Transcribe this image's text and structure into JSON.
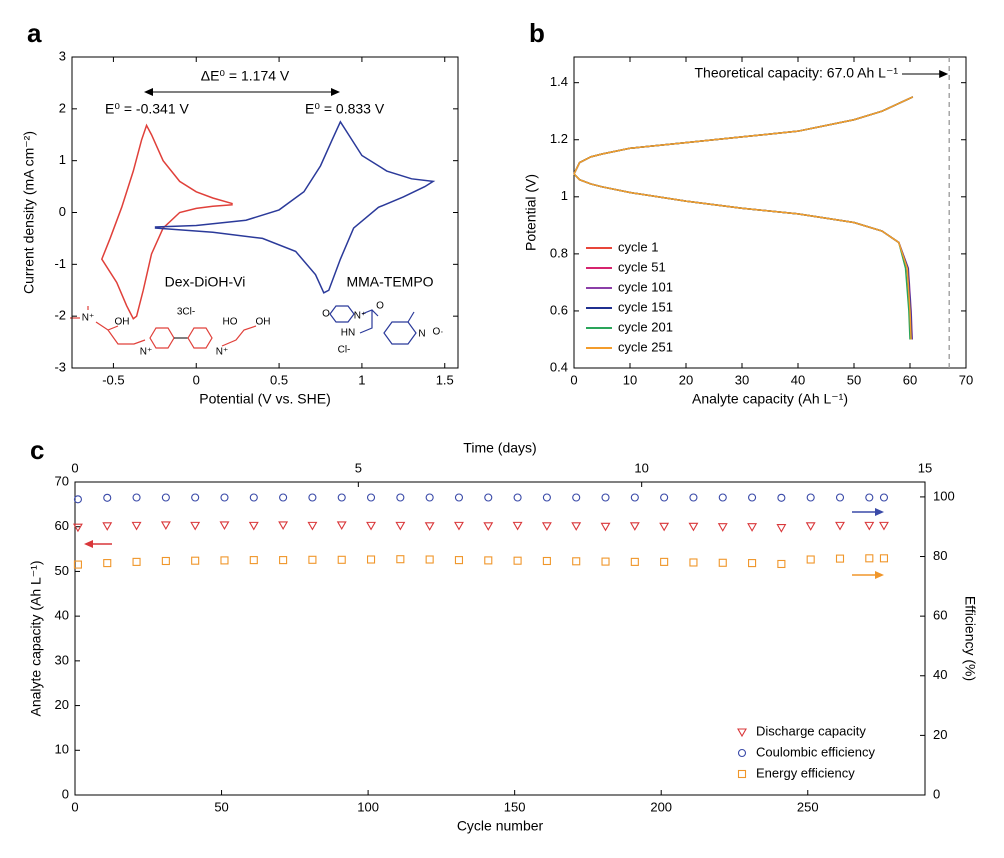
{
  "chart_data": [
    {
      "type": "line",
      "panel_label": "a",
      "xlabel": "Potential (V vs. SHE)",
      "ylabel": "Current density (mA cm⁻²)",
      "xlim": [
        -0.75,
        1.58
      ],
      "xticks": [
        -0.5,
        0,
        0.5,
        1,
        1.5
      ],
      "ylim": [
        -3,
        3
      ],
      "yticks": [
        -3,
        -2,
        -1,
        0,
        1,
        2,
        3
      ],
      "annotations": [
        {
          "text": "ΔE⁰ = 1.174 V",
          "color": "#000000"
        },
        {
          "text": "E⁰ = -0.341 V",
          "color": "#e0403a"
        },
        {
          "text": "E⁰ = 0.833 V",
          "color": "#2b3a9a"
        }
      ],
      "series": [
        {
          "name": "Dex-DiOH-Vi",
          "color": "#e0403a",
          "structure_labels": [
            "N⁺",
            "OH",
            "3Cl-",
            "N⁺",
            "N⁺",
            "HO",
            "OH"
          ],
          "x": [
            0.22,
            0.1,
            0,
            -0.1,
            -0.2,
            -0.27,
            -0.32,
            -0.36,
            -0.38,
            -0.42,
            -0.48,
            -0.57,
            -0.52,
            -0.45,
            -0.38,
            -0.33,
            -0.3,
            -0.27,
            -0.2,
            -0.1,
            0,
            0.1,
            0.22
          ],
          "values": [
            0.15,
            0.12,
            0.08,
            0.0,
            -0.3,
            -0.8,
            -1.5,
            -2.0,
            -2.05,
            -1.8,
            -1.35,
            -0.9,
            -0.5,
            0.1,
            0.8,
            1.4,
            1.68,
            1.5,
            1.0,
            0.6,
            0.4,
            0.28,
            0.17
          ]
        },
        {
          "name": "MMA-TEMPO",
          "color": "#2b3a9a",
          "structure_labels": [
            "O",
            "N⁺",
            "O",
            "HN",
            "Cl-",
            "N",
            "O·"
          ],
          "x": [
            -0.25,
            0,
            0.3,
            0.5,
            0.65,
            0.75,
            0.82,
            0.87,
            0.92,
            1.0,
            1.15,
            1.3,
            1.43,
            1.38,
            1.25,
            1.1,
            0.95,
            0.87,
            0.8,
            0.77,
            0.72,
            0.6,
            0.4,
            0.1,
            -0.25
          ],
          "values": [
            -0.28,
            -0.25,
            -0.15,
            0.05,
            0.4,
            0.9,
            1.4,
            1.75,
            1.5,
            1.1,
            0.8,
            0.65,
            0.6,
            0.5,
            0.3,
            0.1,
            -0.3,
            -0.9,
            -1.5,
            -1.55,
            -1.2,
            -0.75,
            -0.5,
            -0.38,
            -0.3
          ]
        }
      ]
    },
    {
      "type": "line",
      "panel_label": "b",
      "xlabel": "Analyte capacity (Ah L⁻¹)",
      "ylabel": "Potential (V)",
      "xlim": [
        0,
        70
      ],
      "xticks": [
        0,
        10,
        20,
        30,
        40,
        50,
        60,
        70
      ],
      "ylim": [
        0.4,
        1.49
      ],
      "yticks": [
        0.4,
        0.6,
        0.8,
        1,
        1.2,
        1.4
      ],
      "theoretical_capacity": 67,
      "annotations": [
        {
          "text": "Theoretical capacity: 67.0 Ah L⁻¹",
          "color": "#000000"
        }
      ],
      "legend": "lower left",
      "series": [
        {
          "name": "cycle 1",
          "color": "#e8463a",
          "x": [
            0,
            1,
            3,
            5,
            10,
            20,
            30,
            40,
            50,
            55,
            60.5,
            null,
            0,
            1,
            3,
            5,
            10,
            20,
            30,
            40,
            50,
            55,
            58,
            59.6,
            60.1,
            60.3
          ],
          "values": [
            1.08,
            1.12,
            1.14,
            1.15,
            1.17,
            1.19,
            1.21,
            1.23,
            1.27,
            1.3,
            1.35,
            null,
            1.08,
            1.06,
            1.045,
            1.035,
            1.015,
            0.985,
            0.96,
            0.94,
            0.91,
            0.88,
            0.84,
            0.75,
            0.6,
            0.5
          ]
        },
        {
          "name": "cycle 51",
          "color": "#d6246e",
          "x": [
            0,
            1,
            3,
            5,
            10,
            20,
            30,
            40,
            50,
            55,
            60.5,
            null,
            0,
            1,
            3,
            5,
            10,
            20,
            30,
            40,
            50,
            55,
            58,
            59.5,
            60.0,
            60.2
          ],
          "values": [
            1.08,
            1.12,
            1.14,
            1.15,
            1.17,
            1.19,
            1.21,
            1.23,
            1.27,
            1.3,
            1.35,
            null,
            1.08,
            1.06,
            1.045,
            1.035,
            1.015,
            0.985,
            0.96,
            0.94,
            0.91,
            0.88,
            0.84,
            0.75,
            0.6,
            0.5
          ]
        },
        {
          "name": "cycle 101",
          "color": "#8b3fa8",
          "x": [
            0,
            1,
            3,
            5,
            10,
            20,
            30,
            40,
            50,
            55,
            60.5,
            null,
            0,
            1,
            3,
            5,
            10,
            20,
            30,
            40,
            50,
            55,
            58,
            59.7,
            60.2,
            60.4
          ],
          "values": [
            1.08,
            1.12,
            1.14,
            1.15,
            1.17,
            1.19,
            1.21,
            1.23,
            1.27,
            1.3,
            1.35,
            null,
            1.08,
            1.06,
            1.045,
            1.035,
            1.015,
            0.985,
            0.96,
            0.94,
            0.91,
            0.88,
            0.84,
            0.75,
            0.6,
            0.5
          ]
        },
        {
          "name": "cycle 151",
          "color": "#1f2f8f",
          "x": [
            0,
            1,
            3,
            5,
            10,
            20,
            30,
            40,
            50,
            55,
            60.5,
            null,
            0,
            1,
            3,
            5,
            10,
            20,
            30,
            40,
            50,
            55,
            58,
            59.6,
            60.1,
            60.3
          ],
          "values": [
            1.08,
            1.12,
            1.14,
            1.15,
            1.17,
            1.19,
            1.21,
            1.23,
            1.27,
            1.3,
            1.35,
            null,
            1.08,
            1.06,
            1.045,
            1.035,
            1.015,
            0.985,
            0.96,
            0.94,
            0.91,
            0.88,
            0.84,
            0.75,
            0.6,
            0.5
          ]
        },
        {
          "name": "cycle 201",
          "color": "#2aa55a",
          "x": [
            0,
            1,
            3,
            5,
            10,
            20,
            30,
            40,
            50,
            55,
            60.5,
            null,
            0,
            1,
            3,
            5,
            10,
            20,
            30,
            40,
            50,
            55,
            58,
            59.2,
            59.8,
            60.0
          ],
          "values": [
            1.08,
            1.12,
            1.14,
            1.15,
            1.17,
            1.19,
            1.21,
            1.23,
            1.27,
            1.3,
            1.35,
            null,
            1.08,
            1.06,
            1.045,
            1.035,
            1.015,
            0.985,
            0.96,
            0.94,
            0.91,
            0.88,
            0.84,
            0.75,
            0.6,
            0.5
          ]
        },
        {
          "name": "cycle 251",
          "color": "#f39c2b",
          "x": [
            0,
            1,
            3,
            5,
            10,
            20,
            30,
            40,
            50,
            55,
            60.5,
            null,
            0,
            1,
            3,
            5,
            10,
            20,
            30,
            40,
            50,
            55,
            58,
            59.5,
            60.0,
            60.2
          ],
          "values": [
            1.08,
            1.12,
            1.14,
            1.15,
            1.17,
            1.19,
            1.21,
            1.23,
            1.27,
            1.3,
            1.35,
            null,
            1.08,
            1.06,
            1.045,
            1.035,
            1.015,
            0.985,
            0.96,
            0.94,
            0.91,
            0.88,
            0.84,
            0.75,
            0.6,
            0.5
          ]
        }
      ]
    },
    {
      "type": "scatter",
      "panel_label": "c",
      "xlabel": "Cycle number",
      "x2label": "Time (days)",
      "ylabel": "Analyte capacity (Ah L⁻¹)",
      "y2label": "Efficiency (%)",
      "xlim": [
        0,
        290
      ],
      "xticks": [
        0,
        50,
        100,
        150,
        200,
        250
      ],
      "x2lim": [
        0,
        15
      ],
      "x2ticks": [
        0,
        5,
        10,
        15
      ],
      "ylim": [
        0,
        70
      ],
      "yticks": [
        0,
        10,
        20,
        30,
        40,
        50,
        60,
        70
      ],
      "y2lim": [
        0,
        105
      ],
      "y2ticks": [
        0,
        20,
        40,
        60,
        80,
        100
      ],
      "legend": "lower right",
      "x": [
        1,
        11,
        21,
        31,
        41,
        51,
        61,
        71,
        81,
        91,
        101,
        111,
        121,
        131,
        141,
        151,
        161,
        171,
        181,
        191,
        201,
        211,
        221,
        231,
        241,
        251,
        261,
        271,
        276
      ],
      "series": [
        {
          "name": "Discharge capacity",
          "color": "#d9373a",
          "marker": "triangle-down",
          "values": [
            59.9,
            60.2,
            60.3,
            60.4,
            60.3,
            60.4,
            60.3,
            60.4,
            60.3,
            60.4,
            60.3,
            60.3,
            60.2,
            60.3,
            60.2,
            60.3,
            60.2,
            60.2,
            60.1,
            60.2,
            60.1,
            60.1,
            60.0,
            60.0,
            59.8,
            60.2,
            60.3,
            60.3,
            60.3
          ]
        },
        {
          "name": "Coulombic efficiency",
          "color": "#3a4aa8",
          "marker": "circle",
          "axis": "y2",
          "values": [
            99.2,
            99.7,
            99.8,
            99.8,
            99.8,
            99.8,
            99.8,
            99.8,
            99.8,
            99.8,
            99.8,
            99.8,
            99.8,
            99.8,
            99.8,
            99.8,
            99.8,
            99.8,
            99.8,
            99.8,
            99.8,
            99.8,
            99.8,
            99.8,
            99.7,
            99.8,
            99.8,
            99.8,
            99.8
          ]
        },
        {
          "name": "Energy efficiency",
          "color": "#f0962a",
          "marker": "square",
          "axis": "y2",
          "values": [
            77.3,
            77.8,
            78.2,
            78.5,
            78.6,
            78.7,
            78.8,
            78.8,
            78.9,
            78.9,
            79.0,
            79.1,
            79.0,
            78.8,
            78.7,
            78.6,
            78.5,
            78.4,
            78.3,
            78.2,
            78.2,
            78.0,
            77.9,
            77.8,
            77.5,
            79.0,
            79.3,
            79.4,
            79.4
          ]
        }
      ]
    }
  ]
}
